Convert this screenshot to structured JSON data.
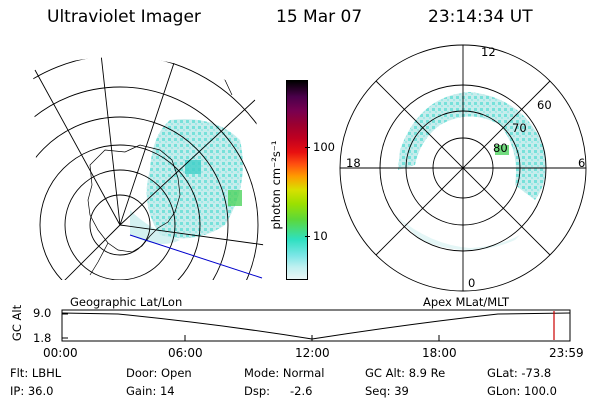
{
  "header": {
    "instrument": "Ultraviolet Imager",
    "date": "15 Mar 07",
    "time": "23:14:34 UT"
  },
  "colorbar": {
    "label": "photon cm⁻²s⁻¹",
    "ticks": [
      "100",
      "10"
    ],
    "colors": [
      "#000000",
      "#4b004b",
      "#780050",
      "#9b0030",
      "#c00020",
      "#e81010",
      "#ff5010",
      "#ff9a00",
      "#d8e000",
      "#9ce000",
      "#5cd83a",
      "#2ee0c0",
      "#7ae6e6",
      "#c0f0f0",
      "#eaf6f6"
    ]
  },
  "maps": {
    "left_caption": "Geographic Lat/Lon",
    "right_caption": "Apex MLat/MLT",
    "mlt_labels": {
      "top": "12",
      "left": "18",
      "right": "6",
      "bottom": "0"
    },
    "mlat_labels": [
      "60",
      "70",
      "80"
    ],
    "aurora_color": "#5de0d6"
  },
  "altitude_plot": {
    "ylabel": "GC Alt",
    "yticks": [
      "9.0",
      "1.8"
    ],
    "xticks": [
      "00:00",
      "06:00",
      "12:00",
      "18:00",
      "23:59"
    ],
    "marker_color": "#cc0000"
  },
  "info": {
    "row1": {
      "filter": "Flt: LBHL",
      "door": "Door: Open",
      "mode": "Mode: Normal",
      "gc_alt": "GC Alt: 8.9 Re",
      "glat": "GLat: -73.8"
    },
    "row2": {
      "ip": "IP: 36.0",
      "gain": "Gain: 14",
      "dsp": "Dsp:",
      "dsp_value": "-2.6",
      "seq": "Seq: 39",
      "glon": "GLon: 100.0"
    }
  }
}
